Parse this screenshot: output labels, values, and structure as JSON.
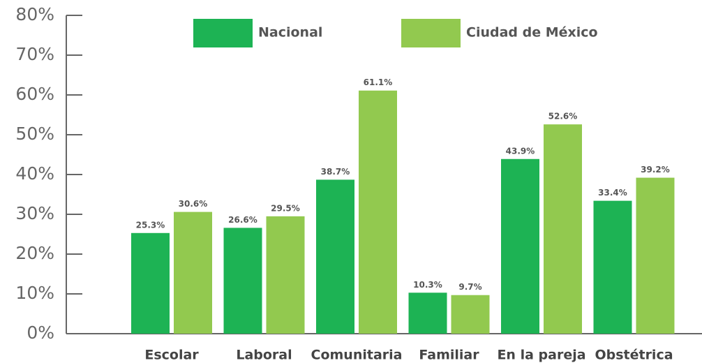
{
  "chart_data": {
    "type": "bar",
    "categories": [
      "Escolar",
      "Laboral",
      "Comunitaria",
      "Familiar",
      "En la pareja",
      "Obstétrica"
    ],
    "series": [
      {
        "name": "Nacional",
        "color": "#1db354",
        "values": [
          25.3,
          26.6,
          38.7,
          10.3,
          43.9,
          33.4
        ],
        "value_labels": [
          "25.3%",
          "26.6%",
          "38.7%",
          "10.3%",
          "43.9%",
          "33.4%"
        ]
      },
      {
        "name": "Ciudad de México",
        "color": "#92c94f",
        "values": [
          30.6,
          29.5,
          61.1,
          9.7,
          52.6,
          39.2
        ],
        "value_labels": [
          "30.6%",
          "29.5%",
          "61.1%",
          "9.7%",
          "52.6%",
          "39.2%"
        ]
      }
    ],
    "ylim": [
      0,
      80
    ],
    "yticks": [
      {
        "value": 0,
        "label": "0%"
      },
      {
        "value": 10,
        "label": "10%"
      },
      {
        "value": 20,
        "label": "20%"
      },
      {
        "value": 30,
        "label": "30%"
      },
      {
        "value": 40,
        "label": "40%"
      },
      {
        "value": 50,
        "label": "50%"
      },
      {
        "value": 60,
        "label": "60%"
      },
      {
        "value": 70,
        "label": "70%"
      },
      {
        "value": 80,
        "label": "80%"
      }
    ],
    "legend": "top"
  }
}
